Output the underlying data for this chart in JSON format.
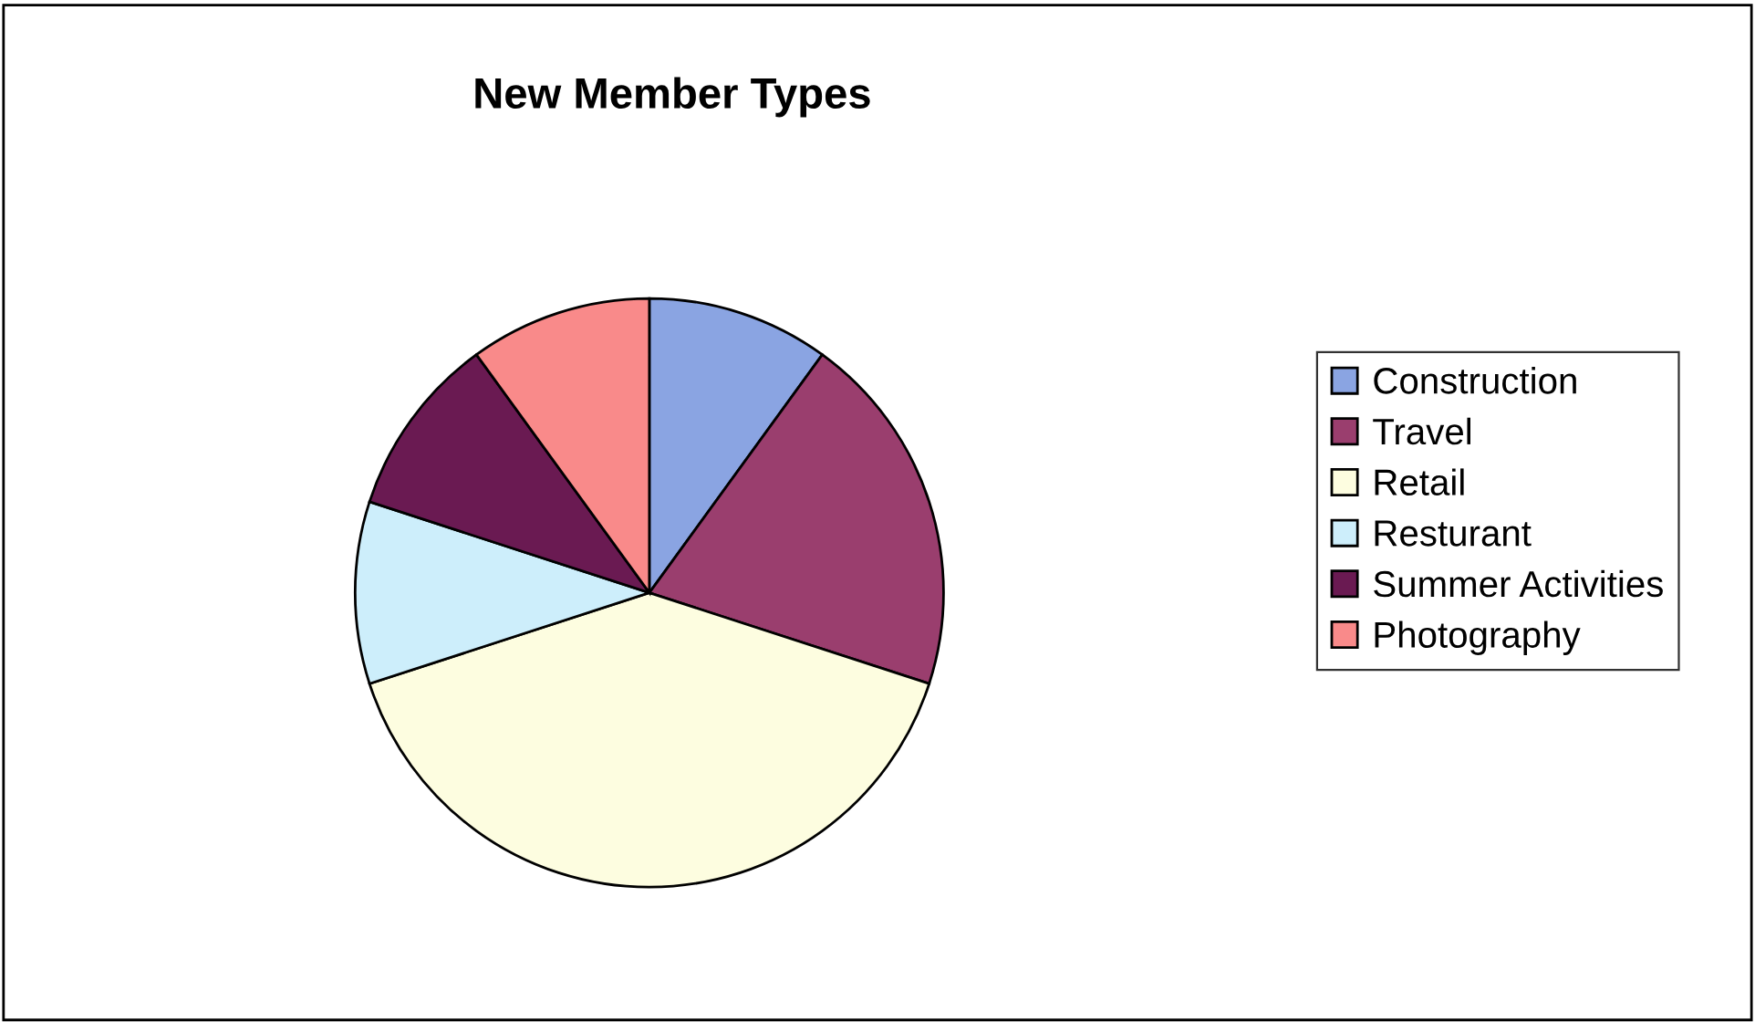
{
  "chart_data": {
    "type": "pie",
    "title": "New Member Types",
    "categories": [
      "Construction",
      "Travel",
      "Retail",
      "Resturant",
      "Summer Activities",
      "Photography"
    ],
    "values": [
      10,
      20,
      40,
      10,
      10,
      10
    ],
    "colors": [
      "#8aa4e2",
      "#9a3e6e",
      "#fdfde0",
      "#cdeefb",
      "#6a1a52",
      "#f98a8a"
    ],
    "legend": "right"
  }
}
